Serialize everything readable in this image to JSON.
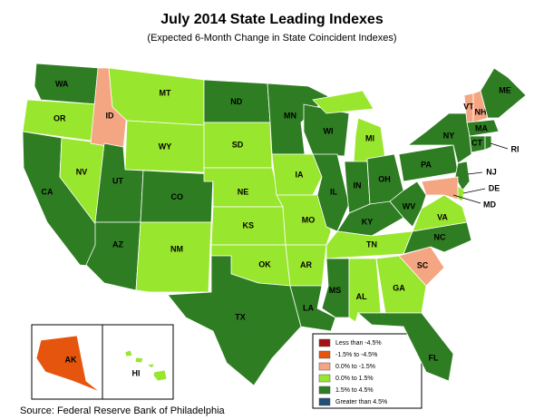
{
  "title": "July 2014 State Leading Indexes",
  "subtitle": "(Expected 6-Month Change in State Coincident Indexes)",
  "source": "Source: Federal Reserve Bank of Philadelphia",
  "legend": [
    {
      "label": "Less than -4.5%",
      "color": "#a50f15"
    },
    {
      "label": "-1.5% to -4.5%",
      "color": "#e6550d"
    },
    {
      "label": "0.0% to -1.5%",
      "color": "#f4a582"
    },
    {
      "label": "0.0% to  1.5%",
      "color": "#99e62e"
    },
    {
      "label": "1.5% to  4.5%",
      "color": "#2e7d22"
    },
    {
      "label": "Greater than 4.5%",
      "color": "#1f4e79"
    }
  ],
  "states": [
    {
      "abbr": "WA",
      "category": 4
    },
    {
      "abbr": "OR",
      "category": 3
    },
    {
      "abbr": "CA",
      "category": 4
    },
    {
      "abbr": "NV",
      "category": 3
    },
    {
      "abbr": "ID",
      "category": 2
    },
    {
      "abbr": "MT",
      "category": 3
    },
    {
      "abbr": "WY",
      "category": 3
    },
    {
      "abbr": "UT",
      "category": 4
    },
    {
      "abbr": "AZ",
      "category": 4
    },
    {
      "abbr": "CO",
      "category": 4
    },
    {
      "abbr": "NM",
      "category": 3
    },
    {
      "abbr": "ND",
      "category": 4
    },
    {
      "abbr": "SD",
      "category": 3
    },
    {
      "abbr": "NE",
      "category": 3
    },
    {
      "abbr": "KS",
      "category": 3
    },
    {
      "abbr": "OK",
      "category": 3
    },
    {
      "abbr": "TX",
      "category": 4
    },
    {
      "abbr": "MN",
      "category": 4
    },
    {
      "abbr": "IA",
      "category": 3
    },
    {
      "abbr": "MO",
      "category": 3
    },
    {
      "abbr": "AR",
      "category": 3
    },
    {
      "abbr": "LA",
      "category": 4
    },
    {
      "abbr": "WI",
      "category": 4
    },
    {
      "abbr": "IL",
      "category": 4
    },
    {
      "abbr": "MI",
      "category": 3
    },
    {
      "abbr": "IN",
      "category": 4
    },
    {
      "abbr": "OH",
      "category": 4
    },
    {
      "abbr": "KY",
      "category": 4
    },
    {
      "abbr": "TN",
      "category": 3
    },
    {
      "abbr": "MS",
      "category": 4
    },
    {
      "abbr": "AL",
      "category": 3
    },
    {
      "abbr": "GA",
      "category": 3
    },
    {
      "abbr": "FL",
      "category": 4
    },
    {
      "abbr": "SC",
      "category": 2
    },
    {
      "abbr": "NC",
      "category": 4
    },
    {
      "abbr": "VA",
      "category": 3
    },
    {
      "abbr": "WV",
      "category": 4
    },
    {
      "abbr": "PA",
      "category": 4
    },
    {
      "abbr": "NY",
      "category": 4
    },
    {
      "abbr": "NJ",
      "category": 4
    },
    {
      "abbr": "DE",
      "category": 3
    },
    {
      "abbr": "MD",
      "category": 2
    },
    {
      "abbr": "VT",
      "category": 2
    },
    {
      "abbr": "NH",
      "category": 2
    },
    {
      "abbr": "ME",
      "category": 4
    },
    {
      "abbr": "MA",
      "category": 4
    },
    {
      "abbr": "CT",
      "category": 4
    },
    {
      "abbr": "RI",
      "category": 4
    },
    {
      "abbr": "AK",
      "category": 1
    },
    {
      "abbr": "HI",
      "category": 3
    }
  ]
}
